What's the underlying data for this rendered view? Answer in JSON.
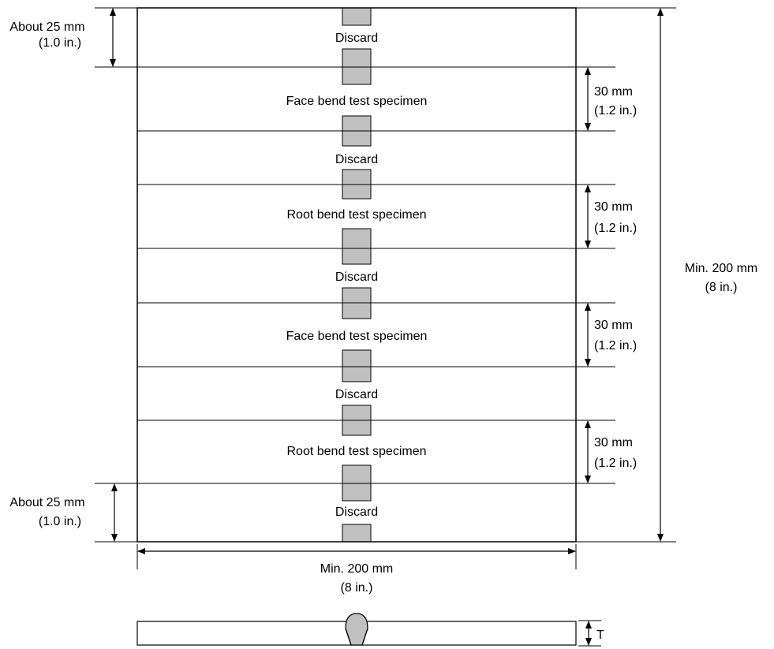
{
  "sections": [
    {
      "label": "Discard"
    },
    {
      "label": "Face bend test specimen"
    },
    {
      "label": "Discard"
    },
    {
      "label": "Root bend test specimen"
    },
    {
      "label": "Discard"
    },
    {
      "label": "Face bend test specimen"
    },
    {
      "label": "Discard"
    },
    {
      "label": "Root bend test specimen"
    },
    {
      "label": "Discard"
    }
  ],
  "dimensions": {
    "top_discard": {
      "line1": "About 25 mm",
      "line2": "(1.0 in.)"
    },
    "bottom_discard": {
      "line1": "About 25 mm",
      "line2": "(1.0 in.)"
    },
    "specimen_1": {
      "line1": "30 mm",
      "line2": "(1.2 in.)"
    },
    "specimen_2": {
      "line1": "30 mm",
      "line2": "(1.2 in.)"
    },
    "specimen_3": {
      "line1": "30 mm",
      "line2": "(1.2 in.)"
    },
    "specimen_4": {
      "line1": "30 mm",
      "line2": "(1.2 in.)"
    },
    "overall_height": {
      "line1": "Min. 200 mm",
      "line2": "(8 in.)"
    },
    "overall_width": {
      "line1": "Min. 200 mm",
      "line2": "(8 in.)"
    },
    "thickness": {
      "label": "T"
    }
  },
  "colors": {
    "weld": "#c0c0c0",
    "line": "#000000"
  }
}
